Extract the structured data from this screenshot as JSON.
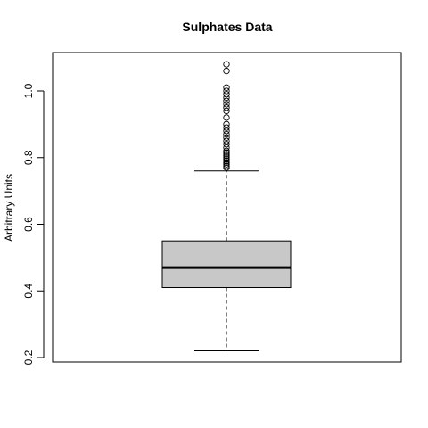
{
  "chart_data": {
    "type": "box",
    "title": "Sulphates Data",
    "xlabel": "",
    "ylabel": "Arbitrary Units",
    "ylim": [
      0.2,
      1.1
    ],
    "yticks": [
      0.2,
      0.4,
      0.6,
      0.8,
      1.0
    ],
    "ytick_labels": [
      "0.2",
      "0.4",
      "0.6",
      "0.8",
      "1.0"
    ],
    "grid": false,
    "box": {
      "whisker_low": 0.22,
      "q1": 0.41,
      "median": 0.47,
      "q3": 0.55,
      "whisker_high": 0.76,
      "fill": "#c8c8c8"
    },
    "outliers": [
      0.77,
      0.775,
      0.78,
      0.785,
      0.79,
      0.795,
      0.8,
      0.805,
      0.81,
      0.815,
      0.82,
      0.83,
      0.84,
      0.85,
      0.86,
      0.87,
      0.88,
      0.89,
      0.9,
      0.92,
      0.94,
      0.95,
      0.96,
      0.97,
      0.98,
      0.99,
      1.0,
      1.01,
      1.06,
      1.08
    ]
  }
}
